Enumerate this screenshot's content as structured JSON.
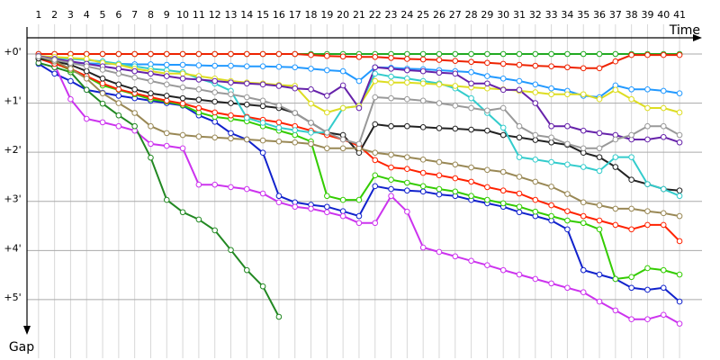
{
  "chart_data": {
    "type": "line",
    "x_label": "Time",
    "y_label": "Gap",
    "x": [
      1,
      2,
      3,
      4,
      5,
      6,
      7,
      8,
      9,
      10,
      11,
      12,
      13,
      14,
      15,
      16,
      17,
      18,
      19,
      20,
      21,
      22,
      23,
      24,
      25,
      26,
      27,
      28,
      29,
      30,
      31,
      32,
      33,
      34,
      35,
      36,
      37,
      38,
      39,
      40,
      41
    ],
    "xlim": [
      0.28,
      42.4
    ],
    "xticks": [
      1,
      2,
      3,
      4,
      5,
      6,
      7,
      8,
      9,
      10,
      11,
      12,
      13,
      14,
      15,
      16,
      17,
      18,
      19,
      20,
      21,
      22,
      23,
      24,
      25,
      26,
      27,
      28,
      29,
      30,
      31,
      32,
      33,
      34,
      35,
      36,
      37,
      38,
      39,
      40,
      41
    ],
    "ylim": [
      -0.33,
      5.68
    ],
    "yticks": [
      {
        "value": 0,
        "label": "+0'"
      },
      {
        "value": 1,
        "label": "+1'"
      },
      {
        "value": 2,
        "label": "+2'"
      },
      {
        "value": 3,
        "label": "+3'"
      },
      {
        "value": 4,
        "label": "+4'"
      },
      {
        "value": 5,
        "label": "+5'"
      }
    ],
    "grid": true,
    "series": [
      {
        "color": "#22aa22",
        "values": [
          0,
          0,
          0,
          0,
          0,
          0,
          0,
          0,
          0,
          0,
          0,
          0,
          0,
          0,
          0,
          0,
          0,
          0,
          0,
          0,
          0,
          0,
          0,
          0,
          0,
          0,
          0,
          0,
          0,
          0,
          0,
          0,
          0,
          0,
          0,
          0,
          0,
          0,
          0,
          0,
          0
        ]
      },
      {
        "color": "#ee2200",
        "values": [
          0,
          0,
          0,
          0,
          0,
          0,
          0,
          0,
          0,
          0,
          0,
          0,
          0,
          0,
          0,
          0,
          0,
          0.02,
          0.04,
          0.05,
          0.06,
          0.06,
          0.08,
          0.1,
          0.11,
          0.12,
          0.14,
          0.16,
          0.18,
          0.2,
          0.22,
          0.24,
          0.25,
          0.27,
          0.29,
          0.29,
          0.15,
          0.02,
          0.02,
          0.02,
          0.02
        ]
      },
      {
        "color": "#2299ff",
        "values": [
          0.1,
          0.15,
          0.18,
          0.19,
          0.2,
          0.2,
          0.21,
          0.21,
          0.22,
          0.22,
          0.23,
          0.24,
          0.24,
          0.25,
          0.25,
          0.26,
          0.27,
          0.3,
          0.33,
          0.35,
          0.55,
          0.27,
          0.28,
          0.3,
          0.31,
          0.33,
          0.35,
          0.37,
          0.45,
          0.5,
          0.55,
          0.62,
          0.7,
          0.75,
          0.85,
          0.88,
          0.64,
          0.72,
          0.72,
          0.75,
          0.8
        ]
      },
      {
        "color": "#1122cc",
        "values": [
          0.2,
          0.4,
          0.55,
          0.73,
          0.79,
          0.85,
          0.9,
          0.95,
          1.0,
          1.05,
          1.25,
          1.38,
          1.61,
          1.74,
          2.01,
          2.89,
          3.02,
          3.07,
          3.11,
          3.2,
          3.3,
          2.69,
          2.75,
          2.78,
          2.8,
          2.86,
          2.89,
          2.97,
          3.04,
          3.11,
          3.22,
          3.3,
          3.39,
          3.57,
          4.4,
          4.49,
          4.58,
          4.76,
          4.8,
          4.76,
          5.04
        ]
      },
      {
        "color": "#cc33ee",
        "values": [
          0.04,
          0.22,
          0.92,
          1.32,
          1.39,
          1.47,
          1.56,
          1.83,
          1.87,
          1.92,
          2.66,
          2.66,
          2.71,
          2.75,
          2.84,
          3.02,
          3.11,
          3.15,
          3.22,
          3.3,
          3.44,
          3.44,
          2.89,
          3.21,
          3.94,
          4.03,
          4.12,
          4.21,
          4.3,
          4.4,
          4.49,
          4.58,
          4.67,
          4.76,
          4.85,
          5.04,
          5.22,
          5.4,
          5.4,
          5.31,
          5.49
        ]
      },
      {
        "color": "#228822",
        "values": [
          0.18,
          0.27,
          0.37,
          0.73,
          1.01,
          1.25,
          1.47,
          2.11,
          2.97,
          3.22,
          3.37,
          3.59,
          3.99,
          4.4,
          4.73,
          5.35,
          null,
          null,
          null,
          null,
          null,
          null,
          null,
          null,
          null,
          null,
          null,
          null,
          null,
          null,
          null,
          null,
          null,
          null,
          null,
          null,
          null,
          null,
          null,
          null,
          null
        ]
      },
      {
        "color": "#33cc00",
        "values": [
          0.09,
          0.18,
          0.33,
          0.46,
          0.64,
          0.73,
          0.82,
          0.92,
          0.97,
          1.04,
          1.19,
          1.28,
          1.32,
          1.37,
          1.47,
          1.56,
          1.65,
          1.78,
          2.89,
          2.97,
          2.97,
          2.47,
          2.56,
          2.62,
          2.69,
          2.75,
          2.8,
          2.89,
          2.97,
          3.04,
          3.11,
          3.21,
          3.3,
          3.39,
          3.44,
          3.57,
          4.58,
          4.54,
          4.36,
          4.4,
          4.49
        ]
      },
      {
        "color": "#ff2200",
        "values": [
          0.09,
          0.2,
          0.3,
          0.45,
          0.6,
          0.72,
          0.8,
          0.88,
          0.95,
          1.01,
          1.1,
          1.19,
          1.25,
          1.28,
          1.34,
          1.39,
          1.47,
          1.56,
          1.65,
          1.74,
          1.87,
          2.16,
          2.31,
          2.34,
          2.42,
          2.47,
          2.53,
          2.6,
          2.71,
          2.78,
          2.84,
          2.97,
          3.08,
          3.2,
          3.3,
          3.39,
          3.48,
          3.57,
          3.48,
          3.48,
          3.81
        ]
      },
      {
        "color": "#222222",
        "values": [
          0.09,
          0.15,
          0.22,
          0.35,
          0.5,
          0.62,
          0.72,
          0.8,
          0.85,
          0.9,
          0.93,
          0.97,
          1.0,
          1.03,
          1.06,
          1.1,
          1.2,
          1.4,
          1.6,
          1.65,
          2.01,
          1.43,
          1.47,
          1.47,
          1.49,
          1.51,
          1.52,
          1.54,
          1.56,
          1.65,
          1.7,
          1.75,
          1.8,
          1.85,
          2.01,
          2.1,
          2.3,
          2.56,
          2.65,
          2.75,
          2.78
        ]
      },
      {
        "color": "#998855",
        "values": [
          0.05,
          0.15,
          0.3,
          0.5,
          0.8,
          1.0,
          1.2,
          1.47,
          1.61,
          1.65,
          1.68,
          1.7,
          1.72,
          1.74,
          1.76,
          1.78,
          1.8,
          1.83,
          1.92,
          1.92,
          1.92,
          2.01,
          2.05,
          2.1,
          2.15,
          2.2,
          2.25,
          2.31,
          2.36,
          2.4,
          2.5,
          2.6,
          2.7,
          2.85,
          3.02,
          3.08,
          3.15,
          3.15,
          3.2,
          3.24,
          3.3
        ]
      },
      {
        "color": "#33cccc",
        "values": [
          0.05,
          0.08,
          0.1,
          0.12,
          0.15,
          0.2,
          0.25,
          0.3,
          0.33,
          0.37,
          0.5,
          0.6,
          0.75,
          1.3,
          1.4,
          1.5,
          1.55,
          1.6,
          1.6,
          1.1,
          1.06,
          0.4,
          0.46,
          0.5,
          0.55,
          0.6,
          0.7,
          0.9,
          1.2,
          1.5,
          2.1,
          2.15,
          2.2,
          2.25,
          2.3,
          2.38,
          2.1,
          2.1,
          2.65,
          2.75,
          2.89
        ]
      },
      {
        "color": "#dddd22",
        "values": [
          0.04,
          0.06,
          0.08,
          0.1,
          0.18,
          0.22,
          0.3,
          0.35,
          0.4,
          0.4,
          0.45,
          0.5,
          0.55,
          0.58,
          0.6,
          0.63,
          0.65,
          1.01,
          1.19,
          1.1,
          1.06,
          0.55,
          0.58,
          0.58,
          0.6,
          0.62,
          0.65,
          0.68,
          0.7,
          0.72,
          0.75,
          0.78,
          0.82,
          0.82,
          0.82,
          0.92,
          0.73,
          0.92,
          1.1,
          1.1,
          1.19
        ]
      },
      {
        "color": "#6622aa",
        "values": [
          0.04,
          0.1,
          0.15,
          0.2,
          0.25,
          0.3,
          0.35,
          0.4,
          0.45,
          0.5,
          0.52,
          0.55,
          0.58,
          0.6,
          0.62,
          0.65,
          0.7,
          0.72,
          0.85,
          0.64,
          1.1,
          0.27,
          0.3,
          0.33,
          0.35,
          0.38,
          0.4,
          0.6,
          0.6,
          0.73,
          0.73,
          1.0,
          1.47,
          1.47,
          1.56,
          1.61,
          1.65,
          1.74,
          1.74,
          1.69,
          1.8
        ]
      },
      {
        "color": "#999999",
        "values": [
          0.05,
          0.12,
          0.18,
          0.25,
          0.32,
          0.4,
          0.48,
          0.55,
          0.62,
          0.68,
          0.72,
          0.78,
          0.82,
          0.88,
          0.95,
          1.05,
          1.2,
          1.4,
          1.6,
          1.74,
          1.83,
          0.88,
          0.9,
          0.92,
          0.95,
          1.0,
          1.05,
          1.1,
          1.15,
          1.1,
          1.47,
          1.65,
          1.7,
          1.83,
          1.92,
          1.92,
          1.74,
          1.65,
          1.47,
          1.47,
          1.65
        ]
      }
    ]
  }
}
